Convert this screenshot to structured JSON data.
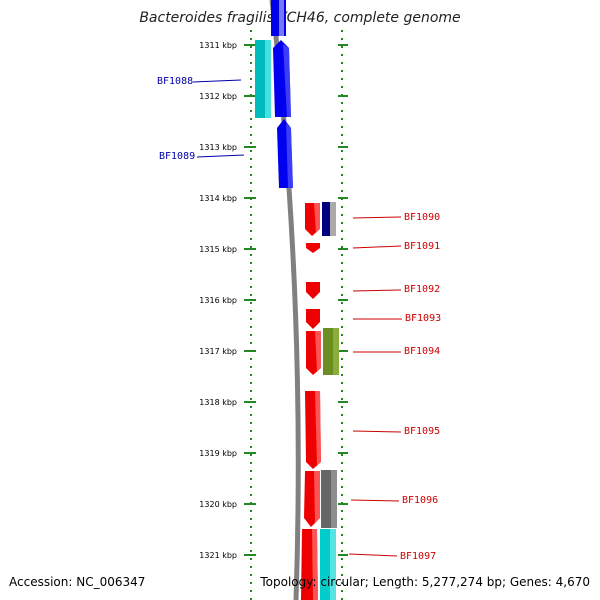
{
  "title": "Bacteroides fragilis YCH46, complete genome",
  "footer": {
    "accession": "Accession: NC_006347",
    "summary": "Topology: circular; Length: 5,277,274 bp; Genes: 4,670"
  },
  "colors": {
    "left_label": "#0000aa",
    "right_label": "#cc0000",
    "ruler": "#228822",
    "backbone": "#808080"
  },
  "ticks": [
    "1311 kbp",
    "1312 kbp",
    "1313 kbp",
    "1314 kbp",
    "1315 kbp",
    "1316 kbp",
    "1317 kbp",
    "1318 kbp",
    "1319 kbp",
    "1320 kbp",
    "1321 kbp"
  ],
  "left_labels": [
    "BF1088",
    "BF1089"
  ],
  "right_labels": [
    "BF1090",
    "BF1091",
    "BF1092",
    "BF1093",
    "BF1094",
    "BF1095",
    "BF1096",
    "BF1097"
  ]
}
